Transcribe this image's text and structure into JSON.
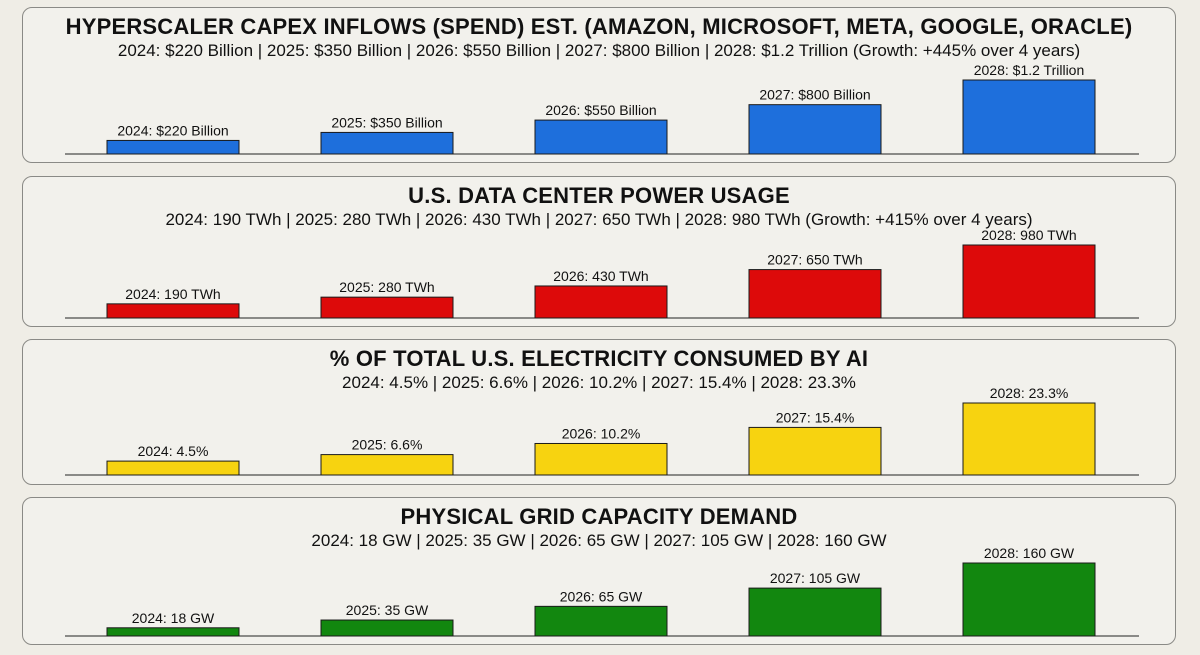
{
  "chart_data": [
    {
      "type": "bar",
      "title": "HYPERSCALER CAPEX INFLOWS (SPEND) EST. (AMAZON, MICROSOFT, META, GOOGLE, ORACLE)",
      "subtitle": "2024: $220 Billion | 2025: $350 Billion | 2026: $550 Billion | 2027: $800 Billion | 2028: $1.2 Trillion (Growth: +445% over 4 years)",
      "categories": [
        "2024",
        "2025",
        "2026",
        "2027",
        "2028"
      ],
      "values": [
        220,
        350,
        550,
        800,
        1200
      ],
      "unit": "Billion USD",
      "data_labels": [
        "2024: $220 Billion",
        "2025: $350 Billion",
        "2026: $550 Billion",
        "2027: $800 Billion",
        "2028: $1.2 Trillion"
      ],
      "color": "#1e6fdc",
      "ylim": [
        0,
        1200
      ]
    },
    {
      "type": "bar",
      "title": "U.S. DATA CENTER POWER USAGE",
      "subtitle": "2024: 190 TWh | 2025: 280 TWh | 2026: 430 TWh | 2027: 650 TWh | 2028: 980 TWh (Growth: +415% over 4 years)",
      "categories": [
        "2024",
        "2025",
        "2026",
        "2027",
        "2028"
      ],
      "values": [
        190,
        280,
        430,
        650,
        980
      ],
      "unit": "TWh",
      "data_labels": [
        "2024: 190 TWh",
        "2025: 280 TWh",
        "2026: 430 TWh",
        "2027: 650 TWh",
        "2028: 980 TWh"
      ],
      "color": "#dd0a0a",
      "ylim": [
        0,
        980
      ]
    },
    {
      "type": "bar",
      "title": "% OF TOTAL U.S. ELECTRICITY CONSUMED BY AI",
      "subtitle": "2024: 4.5% | 2025: 6.6% | 2026: 10.2% | 2027: 15.4% | 2028: 23.3%",
      "categories": [
        "2024",
        "2025",
        "2026",
        "2027",
        "2028"
      ],
      "values": [
        4.5,
        6.6,
        10.2,
        15.4,
        23.3
      ],
      "unit": "%",
      "data_labels": [
        "2024: 4.5%",
        "2025: 6.6%",
        "2026: 10.2%",
        "2027: 15.4%",
        "2028: 23.3%"
      ],
      "color": "#f7d310",
      "ylim": [
        0,
        23.3
      ]
    },
    {
      "type": "bar",
      "title": "PHYSICAL GRID CAPACITY DEMAND",
      "subtitle": "2024: 18 GW | 2025: 35 GW | 2026: 65 GW | 2027: 105 GW | 2028: 160 GW",
      "categories": [
        "2024",
        "2025",
        "2026",
        "2027",
        "2028"
      ],
      "values": [
        18,
        35,
        65,
        105,
        160
      ],
      "unit": "GW",
      "data_labels": [
        "2024: 18 GW",
        "2025: 35 GW",
        "2026: 65 GW",
        "2027: 105 GW",
        "2028: 160 GW"
      ],
      "color": "#12870f",
      "ylim": [
        0,
        160
      ]
    }
  ]
}
